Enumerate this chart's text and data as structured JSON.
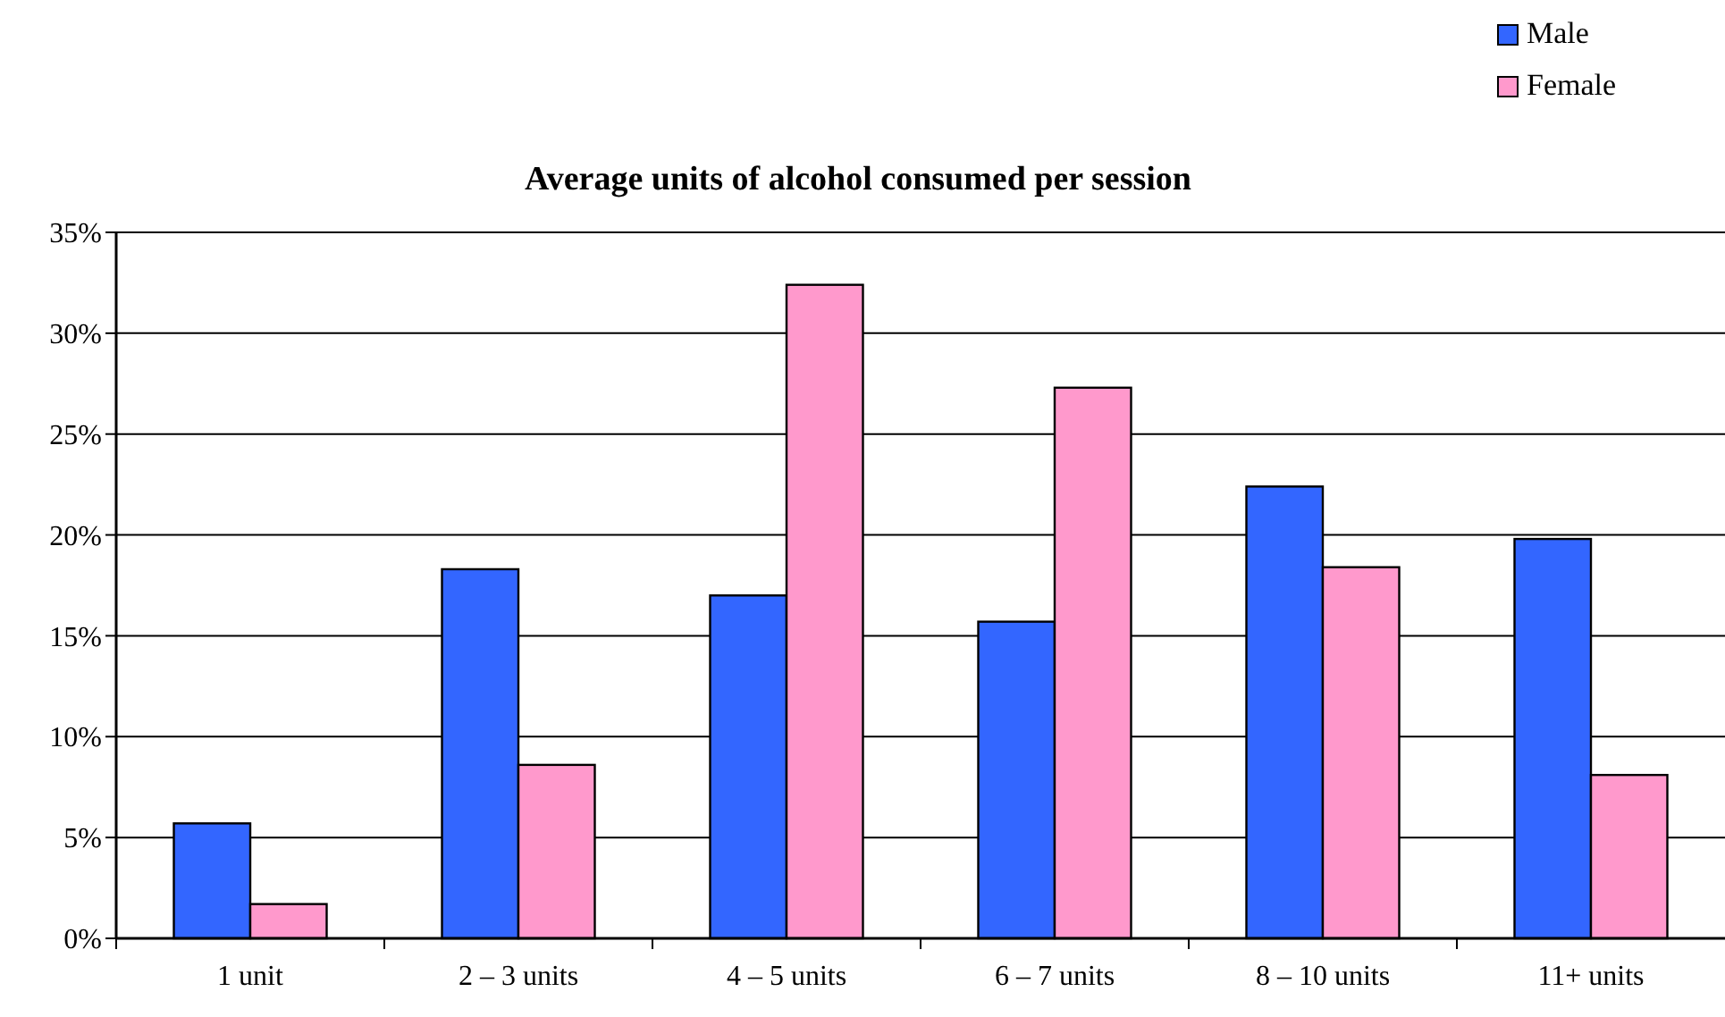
{
  "chart_data": {
    "type": "bar",
    "title": "Average units of alcohol consumed per session",
    "categories": [
      "1 unit",
      "2 – 3 units",
      "4 – 5 units",
      "6 – 7 units",
      "8 – 10 units",
      "11+ units"
    ],
    "series": [
      {
        "name": "Male",
        "color": "#3366ff",
        "values": [
          5.7,
          18.3,
          17.0,
          15.7,
          22.4,
          19.8
        ]
      },
      {
        "name": "Female",
        "color": "#ff99cc",
        "values": [
          1.7,
          8.6,
          32.4,
          27.3,
          18.4,
          8.1
        ]
      }
    ],
    "ylim": [
      0,
      35
    ],
    "yticks": [
      {
        "value": 0,
        "label": "0%"
      },
      {
        "value": 5,
        "label": "5%"
      },
      {
        "value": 10,
        "label": "10%"
      },
      {
        "value": 15,
        "label": "15%"
      },
      {
        "value": 20,
        "label": "20%"
      },
      {
        "value": 25,
        "label": "25%"
      },
      {
        "value": 30,
        "label": "30%"
      },
      {
        "value": 35,
        "label": "35%"
      }
    ],
    "grid": "y",
    "legend": "top right"
  }
}
